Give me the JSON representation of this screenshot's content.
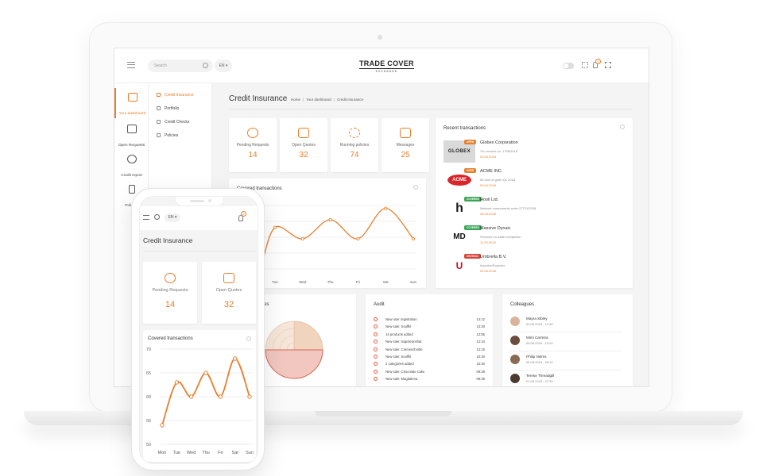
{
  "header": {
    "search_placeholder": "Search",
    "lang": "EN ▾",
    "logo_title": "TRADE COVER",
    "logo_subtitle": "EXCHANGE",
    "notifications_count": "3"
  },
  "sidebar": {
    "items": [
      {
        "label": "Your dashboard",
        "icon": "dashboard-icon"
      },
      {
        "label": "Open Requests",
        "icon": "requests-icon"
      },
      {
        "label": "Credit report",
        "icon": "report-icon"
      },
      {
        "label": "Policies",
        "icon": "policies-icon"
      }
    ]
  },
  "submenu": {
    "items": [
      {
        "label": "Credit Insurance"
      },
      {
        "label": "Portfolio"
      },
      {
        "label": "Credit Checks"
      },
      {
        "label": "Policies"
      }
    ]
  },
  "page": {
    "title": "Credit Insurance",
    "breadcrumb": [
      "Home",
      "Your dashboard",
      "Credit Insurance"
    ]
  },
  "stats": [
    {
      "label": "Pending Requests",
      "value": "14"
    },
    {
      "label": "Open Quotes",
      "value": "32"
    },
    {
      "label": "Running policies",
      "value": "74"
    },
    {
      "label": "Messages",
      "value": "25"
    }
  ],
  "covered": {
    "title": "Covered transactions",
    "days": [
      "Tue",
      "Wed",
      "Thu",
      "Fri",
      "Sat",
      "Sun"
    ]
  },
  "categories": {
    "title_partial": "gories"
  },
  "transactions": {
    "title": "Recent transactions",
    "items": [
      {
        "logo": "GLOBEX",
        "badge": "OPEN",
        "name": "Globex Corporation",
        "desc": "You invoice no. 1796/2018",
        "date": "03.04.2018"
      },
      {
        "logo": "ACME",
        "badge": "OPEN",
        "name": "ACME INC.",
        "desc": "50 tons of grain Q1 2018",
        "date": "03.04.2018"
      },
      {
        "logo": "h",
        "badge": "COVERED",
        "name": "Hooli Ltd.",
        "desc": "Network components order 27721/2018",
        "date": "25.03.2018"
      },
      {
        "logo": "MD",
        "badge": "COVERED",
        "name": "Massive Dynaic",
        "desc": "Services on trade completion",
        "date": "11.03.2018"
      },
      {
        "logo": "U",
        "badge": "ON HOLD",
        "name": "Umbrella B.V.",
        "desc": "Importer/Exporter",
        "date": "02.06.2018"
      }
    ],
    "badge_colors": {
      "OPEN": "#e87e2c",
      "COVERED": "#3aa655",
      "ON HOLD": "#d9433a"
    }
  },
  "audit": {
    "title": "Audit",
    "items": [
      {
        "text": "New user registration",
        "time": "14:12"
      },
      {
        "text": "New sale: Soufflé",
        "time": "13:20"
      },
      {
        "text": "14 products added",
        "time": "12:55"
      },
      {
        "text": "New sale: Napoleonshat",
        "time": "12:44"
      },
      {
        "text": "New sale: Cremeschnitte",
        "time": "12:15"
      },
      {
        "text": "New sale: Soufflé",
        "time": "10:40"
      },
      {
        "text": "2 categories added",
        "time": "10:20"
      },
      {
        "text": "New sale: Chocolate Cake",
        "time": "09:28"
      },
      {
        "text": "New sale: Magdalena",
        "time": "09:25"
      }
    ]
  },
  "colleagues": {
    "title": "Colleagues",
    "items": [
      {
        "name": "Mayra Sibley",
        "date": "09.08.2018 - 12:45"
      },
      {
        "name": "Mimi Carreira",
        "date": "05.08.2018 - 10:20"
      },
      {
        "name": "Philip Nelms",
        "date": "05.08.2018 - 09:12"
      },
      {
        "name": "Terese Threadgill",
        "date": "01.08.2018 - 07:30"
      }
    ]
  },
  "mobile": {
    "lang": "EN ▾",
    "notifications_count": "2",
    "title": "Credit Insurance",
    "stats": [
      {
        "label": "Pending Requests",
        "value": "14"
      },
      {
        "label": "Open Quotes",
        "value": "32"
      }
    ],
    "chart_title": "Covered transactions"
  },
  "chart_data": [
    {
      "type": "line",
      "title": "Covered transactions",
      "x": [
        "Mon",
        "Tue",
        "Wed",
        "Thu",
        "Fri",
        "Sat",
        "Sun"
      ],
      "values": [
        54,
        63,
        60,
        65,
        60,
        68,
        60
      ],
      "yticks": [
        50,
        55,
        60,
        65,
        70
      ],
      "ylim": [
        50,
        70
      ],
      "color": "#e87e2c"
    }
  ],
  "colors": {
    "accent": "#e87e2c",
    "bg": "#f4f4f4",
    "audit_dot": "#e35b4a"
  }
}
